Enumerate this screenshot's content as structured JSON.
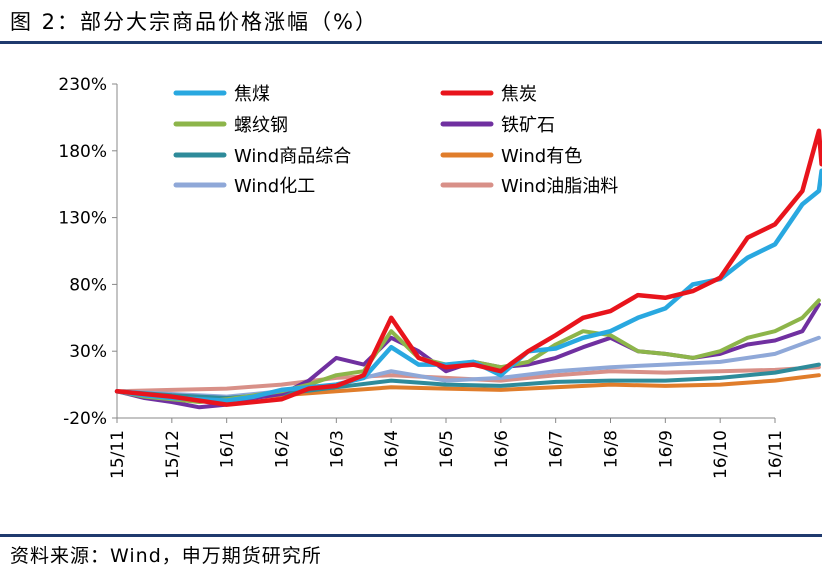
{
  "header": {
    "title": "图 2：部分大宗商品价格涨幅（%）"
  },
  "footer": {
    "source": "资料来源：Wind，申万期货研究所"
  },
  "chart_data": {
    "type": "line",
    "title": "",
    "xlabel": "",
    "ylabel": "",
    "ylim": [
      -20,
      230
    ],
    "yticks": [
      "230%",
      "180%",
      "130%",
      "80%",
      "30%",
      "-20%"
    ],
    "ytick_values": [
      230,
      180,
      130,
      80,
      30,
      -20
    ],
    "x_categories": [
      "15/11",
      "15/12",
      "16/1",
      "16/2",
      "16/3",
      "16/4",
      "16/5",
      "16/6",
      "16/7",
      "16/8",
      "16/9",
      "16/10",
      "16/11"
    ],
    "grid": false,
    "legend_position": "top",
    "series": [
      {
        "name": "焦煤",
        "color": "#29a8e0",
        "width": 4.5,
        "values": [
          [
            0,
            0
          ],
          [
            0.5,
            -3
          ],
          [
            1,
            -5
          ],
          [
            1.5,
            -6
          ],
          [
            2,
            -7
          ],
          [
            2.5,
            -4
          ],
          [
            3,
            1
          ],
          [
            3.5,
            3
          ],
          [
            4,
            5
          ],
          [
            4.5,
            10
          ],
          [
            5,
            33
          ],
          [
            5.5,
            20
          ],
          [
            6,
            20
          ],
          [
            6.5,
            22
          ],
          [
            7,
            12
          ],
          [
            7.5,
            30
          ],
          [
            8,
            32
          ],
          [
            8.5,
            40
          ],
          [
            9,
            45
          ],
          [
            9.5,
            55
          ],
          [
            10,
            62
          ],
          [
            10.5,
            80
          ],
          [
            11,
            84
          ],
          [
            11.5,
            100
          ],
          [
            12,
            110
          ],
          [
            12.5,
            140
          ],
          [
            12.8,
            150
          ],
          [
            12.85,
            165
          ]
        ]
      },
      {
        "name": "焦炭",
        "color": "#e8141c",
        "width": 4.5,
        "values": [
          [
            0,
            0
          ],
          [
            0.5,
            -2
          ],
          [
            1,
            -4
          ],
          [
            1.5,
            -7
          ],
          [
            2,
            -10
          ],
          [
            2.5,
            -8
          ],
          [
            3,
            -6
          ],
          [
            3.5,
            2
          ],
          [
            4,
            4
          ],
          [
            4.5,
            12
          ],
          [
            5,
            55
          ],
          [
            5.5,
            25
          ],
          [
            6,
            18
          ],
          [
            6.5,
            20
          ],
          [
            7,
            15
          ],
          [
            7.5,
            30
          ],
          [
            8,
            42
          ],
          [
            8.5,
            55
          ],
          [
            9,
            60
          ],
          [
            9.5,
            72
          ],
          [
            10,
            70
          ],
          [
            10.5,
            75
          ],
          [
            11,
            85
          ],
          [
            11.5,
            115
          ],
          [
            12,
            125
          ],
          [
            12.5,
            150
          ],
          [
            12.8,
            195
          ],
          [
            12.85,
            170
          ]
        ]
      },
      {
        "name": "螺纹钢",
        "color": "#8db54a",
        "width": 4,
        "values": [
          [
            0,
            0
          ],
          [
            0.5,
            -4
          ],
          [
            1,
            -6
          ],
          [
            1.5,
            -8
          ],
          [
            2,
            -6
          ],
          [
            2.5,
            -3
          ],
          [
            3,
            0
          ],
          [
            3.5,
            5
          ],
          [
            4,
            12
          ],
          [
            4.5,
            15
          ],
          [
            5,
            45
          ],
          [
            5.5,
            25
          ],
          [
            6,
            20
          ],
          [
            6.5,
            22
          ],
          [
            7,
            18
          ],
          [
            7.5,
            22
          ],
          [
            8,
            35
          ],
          [
            8.5,
            45
          ],
          [
            9,
            42
          ],
          [
            9.5,
            30
          ],
          [
            10,
            28
          ],
          [
            10.5,
            25
          ],
          [
            11,
            30
          ],
          [
            11.5,
            40
          ],
          [
            12,
            45
          ],
          [
            12.5,
            55
          ],
          [
            12.8,
            68
          ]
        ]
      },
      {
        "name": "铁矿石",
        "color": "#7030a0",
        "width": 4,
        "values": [
          [
            0,
            0
          ],
          [
            0.5,
            -5
          ],
          [
            1,
            -8
          ],
          [
            1.5,
            -12
          ],
          [
            2,
            -10
          ],
          [
            2.5,
            -5
          ],
          [
            3,
            -2
          ],
          [
            3.5,
            8
          ],
          [
            4,
            25
          ],
          [
            4.5,
            20
          ],
          [
            5,
            40
          ],
          [
            5.5,
            30
          ],
          [
            6,
            15
          ],
          [
            6.5,
            22
          ],
          [
            7,
            18
          ],
          [
            7.5,
            20
          ],
          [
            8,
            25
          ],
          [
            8.5,
            33
          ],
          [
            9,
            40
          ],
          [
            9.5,
            30
          ],
          [
            10,
            28
          ],
          [
            10.5,
            25
          ],
          [
            11,
            28
          ],
          [
            11.5,
            35
          ],
          [
            12,
            38
          ],
          [
            12.5,
            45
          ],
          [
            12.8,
            65
          ]
        ]
      },
      {
        "name": "Wind商品综合",
        "color": "#2e8b9a",
        "width": 4,
        "values": [
          [
            0,
            0
          ],
          [
            1,
            -3
          ],
          [
            2,
            -5
          ],
          [
            3,
            -2
          ],
          [
            4,
            3
          ],
          [
            5,
            8
          ],
          [
            6,
            5
          ],
          [
            7,
            4
          ],
          [
            8,
            7
          ],
          [
            9,
            8
          ],
          [
            10,
            8
          ],
          [
            11,
            10
          ],
          [
            12,
            14
          ],
          [
            12.8,
            20
          ]
        ]
      },
      {
        "name": "Wind有色",
        "color": "#e07d2b",
        "width": 4,
        "values": [
          [
            0,
            0
          ],
          [
            1,
            -4
          ],
          [
            2,
            -6
          ],
          [
            3,
            -3
          ],
          [
            4,
            0
          ],
          [
            5,
            3
          ],
          [
            6,
            2
          ],
          [
            7,
            1
          ],
          [
            8,
            3
          ],
          [
            9,
            5
          ],
          [
            10,
            4
          ],
          [
            11,
            5
          ],
          [
            12,
            8
          ],
          [
            12.8,
            12
          ]
        ]
      },
      {
        "name": "Wind化工",
        "color": "#8fa8d8",
        "width": 4,
        "values": [
          [
            0,
            0
          ],
          [
            1,
            -2
          ],
          [
            2,
            -4
          ],
          [
            3,
            0
          ],
          [
            4,
            5
          ],
          [
            5,
            15
          ],
          [
            6,
            8
          ],
          [
            7,
            10
          ],
          [
            8,
            15
          ],
          [
            9,
            18
          ],
          [
            10,
            20
          ],
          [
            11,
            22
          ],
          [
            12,
            28
          ],
          [
            12.8,
            40
          ]
        ]
      },
      {
        "name": "Wind油脂油料",
        "color": "#d89088",
        "width": 4,
        "values": [
          [
            0,
            0
          ],
          [
            1,
            1
          ],
          [
            2,
            2
          ],
          [
            3,
            5
          ],
          [
            4,
            10
          ],
          [
            5,
            12
          ],
          [
            6,
            10
          ],
          [
            7,
            8
          ],
          [
            8,
            12
          ],
          [
            9,
            15
          ],
          [
            10,
            14
          ],
          [
            11,
            15
          ],
          [
            12,
            16
          ],
          [
            12.8,
            18
          ]
        ]
      }
    ]
  }
}
